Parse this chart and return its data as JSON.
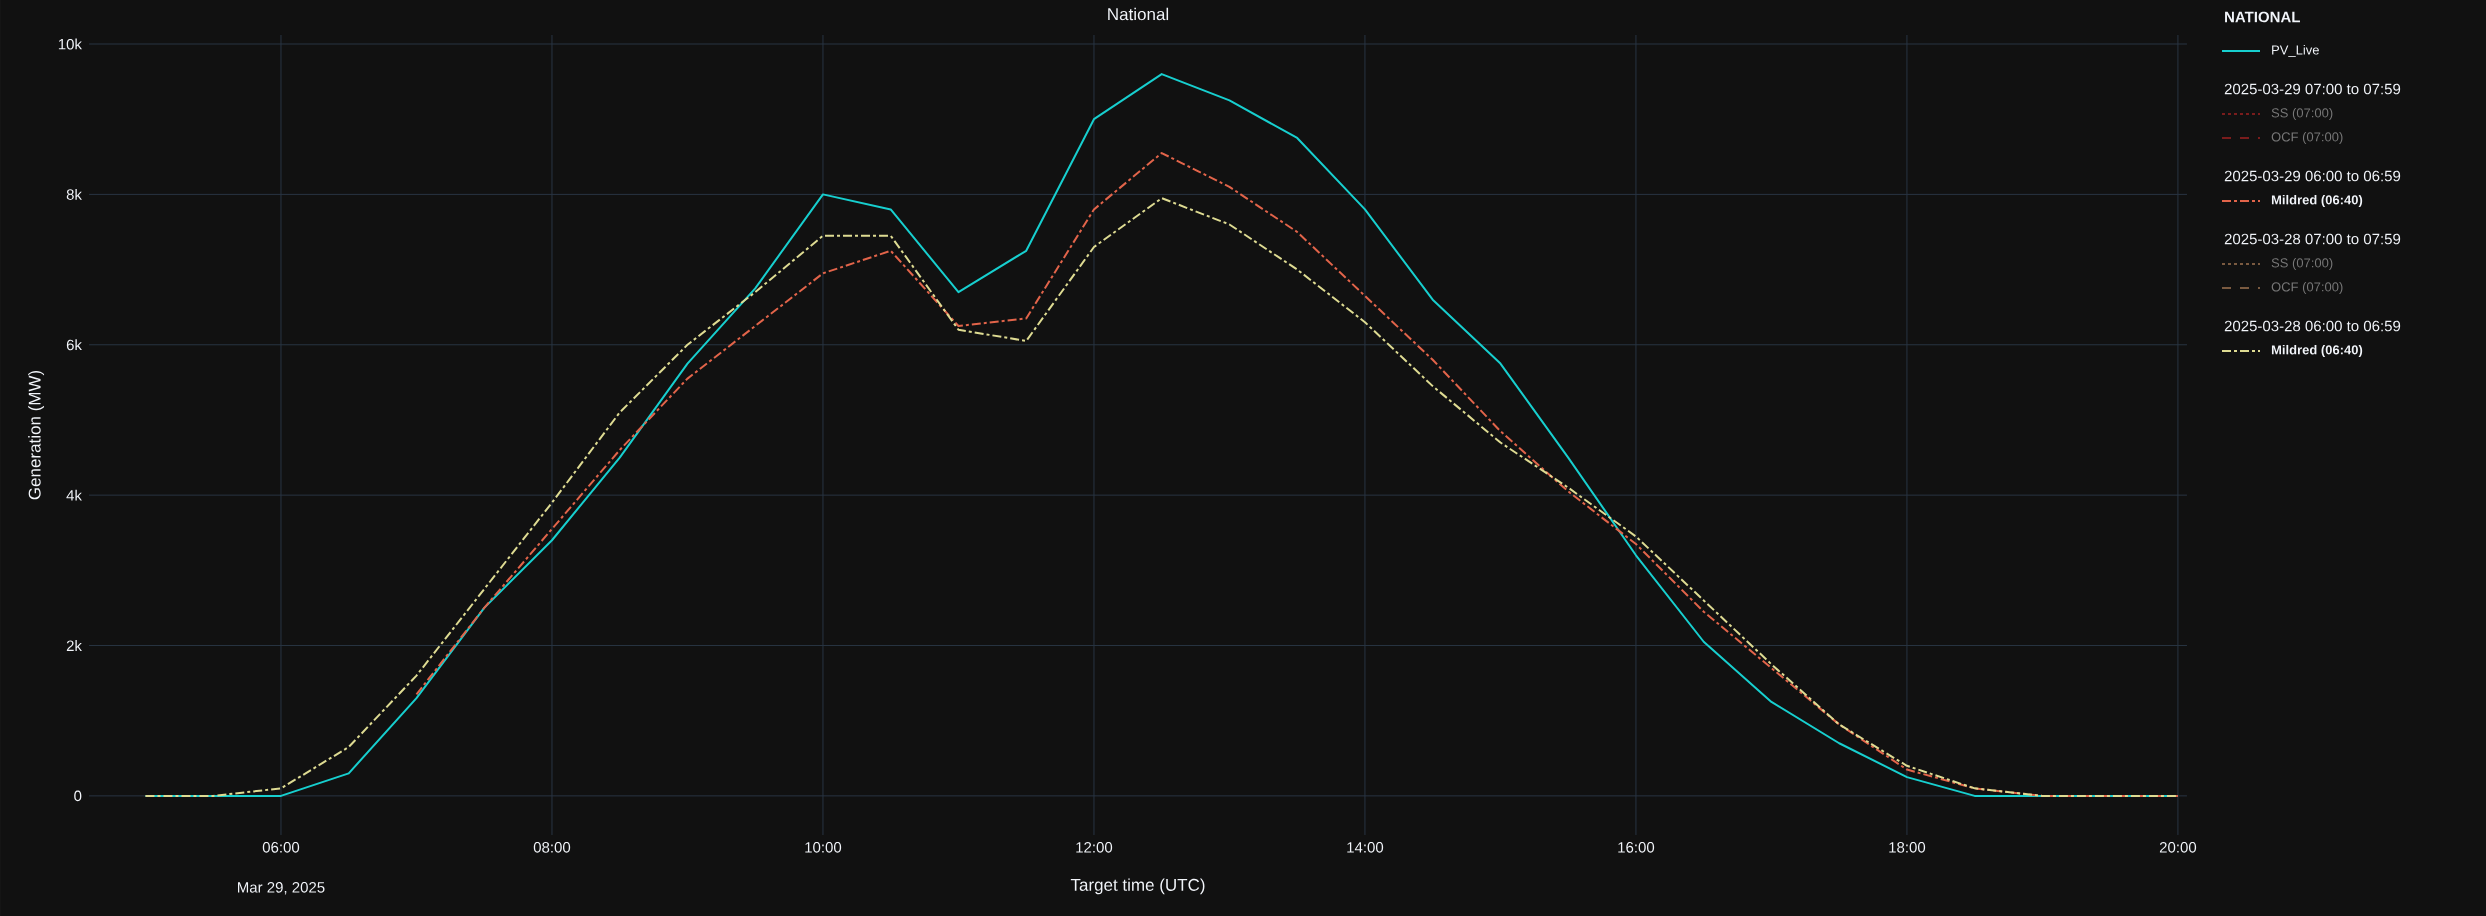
{
  "chart_data": {
    "type": "line",
    "title": "National",
    "xlabel": "Target time (UTC)",
    "ylabel": "Generation (MW)",
    "legend_title": "NATIONAL",
    "legend": "right",
    "grid": true,
    "annotations": [
      "2025-03-29 07:00 to 07:59",
      "2025-03-29 06:00 to 06:59",
      "2025-03-28 07:00 to 07:59",
      "2025-03-28 06:00 to 06:59",
      "Mar 29, 2025"
    ],
    "x": [
      "2025-03-29T05:00",
      "2025-03-29T05:30",
      "2025-03-29T06:00",
      "2025-03-29T06:30",
      "2025-03-29T07:00",
      "2025-03-29T07:30",
      "2025-03-29T08:00",
      "2025-03-29T08:30",
      "2025-03-29T09:00",
      "2025-03-29T09:30",
      "2025-03-29T10:00",
      "2025-03-29T10:30",
      "2025-03-29T11:00",
      "2025-03-29T11:30",
      "2025-03-29T12:00",
      "2025-03-29T12:30",
      "2025-03-29T13:00",
      "2025-03-29T13:30",
      "2025-03-29T14:00",
      "2025-03-29T14:30",
      "2025-03-29T15:00",
      "2025-03-29T15:30",
      "2025-03-29T16:00",
      "2025-03-29T16:30",
      "2025-03-29T17:00",
      "2025-03-29T17:30",
      "2025-03-29T18:00",
      "2025-03-29T18:30",
      "2025-03-29T19:00",
      "2025-03-29T19:30",
      "2025-03-29T20:00"
    ],
    "xlim": [
      "2025-03-29T04:35",
      "2025-03-29T20:04"
    ],
    "xticks": [
      {
        "value": "2025-03-29T06:00",
        "label": "06:00"
      },
      {
        "value": "2025-03-29T08:00",
        "label": "08:00"
      },
      {
        "value": "2025-03-29T10:00",
        "label": "10:00"
      },
      {
        "value": "2025-03-29T12:00",
        "label": "12:00"
      },
      {
        "value": "2025-03-29T14:00",
        "label": "14:00"
      },
      {
        "value": "2025-03-29T16:00",
        "label": "16:00"
      },
      {
        "value": "2025-03-29T18:00",
        "label": "18:00"
      },
      {
        "value": "2025-03-29T20:00",
        "label": "20:00"
      }
    ],
    "ylim": [
      -520,
      10120
    ],
    "yticks": [
      0,
      {
        "value": 2000,
        "label": "2k"
      },
      {
        "value": 4000,
        "label": "4k"
      },
      {
        "value": 6000,
        "label": "6k"
      },
      {
        "value": 8000,
        "label": "8k"
      },
      {
        "value": 10000,
        "label": "10k"
      }
    ],
    "series": [
      {
        "name": "PV_Live",
        "color": "#17cfcf",
        "line_style": "solid",
        "values": [
          0,
          0,
          0,
          300,
          1300,
          2500,
          3400,
          4500,
          5750,
          6750,
          8000,
          7800,
          6700,
          7250,
          9000,
          9600,
          9250,
          8750,
          7800,
          6600,
          5750,
          4500,
          3200,
          2050,
          1250,
          700,
          250,
          0,
          0,
          0,
          0
        ]
      },
      {
        "name": "SS (07:00)",
        "color": "#7a1c1c",
        "line_style": "dotted",
        "values": [
          null,
          null,
          null,
          null,
          null,
          null,
          null,
          null,
          null,
          null,
          null,
          null,
          null,
          null,
          null,
          null,
          null,
          null,
          null,
          null,
          null,
          null,
          null,
          null,
          null,
          null,
          null,
          null,
          null,
          null,
          null
        ]
      },
      {
        "name": "OCF (07:00)",
        "color": "#7a1c1c",
        "line_style": "dashed",
        "values": [
          null,
          null,
          null,
          null,
          null,
          null,
          null,
          null,
          null,
          null,
          null,
          null,
          null,
          null,
          null,
          null,
          null,
          null,
          null,
          null,
          null,
          null,
          null,
          null,
          null,
          null,
          null,
          null,
          null,
          null,
          null
        ]
      },
      {
        "name": "Mildred (06:40)",
        "color": "#e2644a",
        "line_style": "dashdot",
        "values": [
          null,
          null,
          null,
          null,
          1350,
          2500,
          3550,
          4600,
          5550,
          6250,
          6950,
          7250,
          6250,
          6350,
          7800,
          8550,
          8100,
          7500,
          6650,
          5800,
          4850,
          4050,
          3350,
          2450,
          1700,
          950,
          350,
          100,
          0,
          0,
          0
        ]
      },
      {
        "name": "SS (07:00)",
        "color": "#7a5a40",
        "line_style": "dotted",
        "values": [
          null,
          null,
          null,
          null,
          null,
          null,
          null,
          null,
          null,
          null,
          null,
          null,
          null,
          null,
          null,
          null,
          null,
          null,
          null,
          null,
          null,
          null,
          null,
          null,
          null,
          null,
          null,
          null,
          null,
          null,
          null
        ]
      },
      {
        "name": "OCF (07:00)",
        "color": "#7a5a40",
        "line_style": "dashed",
        "values": [
          null,
          null,
          null,
          null,
          null,
          null,
          null,
          null,
          null,
          null,
          null,
          null,
          null,
          null,
          null,
          null,
          null,
          null,
          null,
          null,
          null,
          null,
          null,
          null,
          null,
          null,
          null,
          null,
          null,
          null,
          null
        ]
      },
      {
        "name": "Mildred (06:40)",
        "color": "#dedb92",
        "line_style": "dashdot",
        "values": [
          0,
          0,
          100,
          650,
          1600,
          2750,
          3900,
          5100,
          6000,
          6700,
          7450,
          7450,
          6200,
          6050,
          7300,
          7950,
          7600,
          7000,
          6300,
          5450,
          4700,
          4100,
          3450,
          2600,
          1750,
          950,
          400,
          100,
          0,
          0,
          0
        ]
      }
    ]
  }
}
